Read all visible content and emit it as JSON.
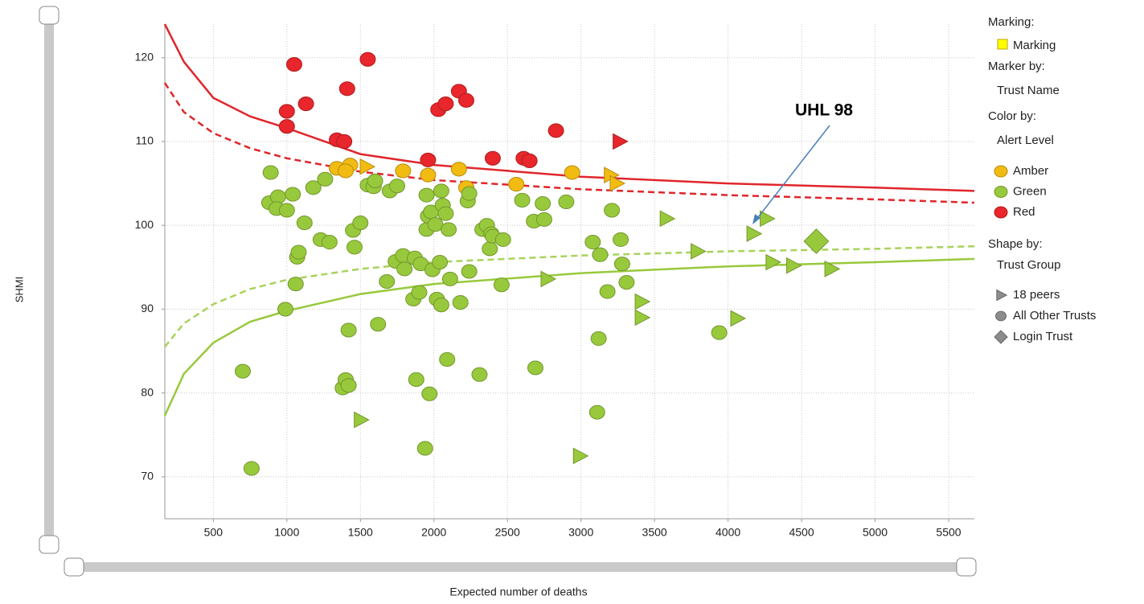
{
  "chart_data": {
    "type": "scatter",
    "x_label": "Expected number of deaths",
    "y_label": "SHMI",
    "xlim": [
      170,
      5675
    ],
    "ylim": [
      65,
      124
    ],
    "xticks": [
      500,
      1000,
      1500,
      2000,
      2500,
      3000,
      3500,
      4000,
      4500,
      5000,
      5500
    ],
    "yticks": [
      70,
      80,
      90,
      100,
      110,
      120
    ],
    "grid": true,
    "annotation": "UHL 98",
    "legend": {
      "marking_title": "Marking:",
      "marking": "Marking",
      "marking_color": "#ffff00",
      "marker_by_title": "Marker by:",
      "marker_by": "Trust Name",
      "color_by_title": "Color by:",
      "color_by": "Alert Level",
      "colors": [
        {
          "name": "Amber",
          "color": "#f2bb12"
        },
        {
          "name": "Green",
          "color": "#98c93c"
        },
        {
          "name": "Red",
          "color": "#e8262b"
        }
      ],
      "shape_by_title": "Shape by:",
      "shape_by": "Trust Group",
      "shapes": [
        {
          "name": "18 peers",
          "shape": "triangle"
        },
        {
          "name": "All Other Trusts",
          "shape": "circle"
        },
        {
          "name": "Login Trust",
          "shape": "diamond"
        }
      ],
      "shape_color": "#8c8c8c"
    },
    "lines": [
      {
        "color": "#e0262b",
        "dashed": false,
        "x": [
          170,
          300,
          500,
          750,
          1000,
          1500,
          2000,
          3000,
          4000,
          5000,
          5675
        ],
        "values": [
          124,
          119.5,
          115.2,
          113,
          111.6,
          108.5,
          107.2,
          105.8,
          105,
          104.5,
          104.1
        ]
      },
      {
        "color": "#e0262b",
        "dashed": true,
        "x": [
          170,
          300,
          500,
          750,
          1000,
          1500,
          2000,
          3000,
          4000,
          5000,
          5675
        ],
        "values": [
          117,
          113.5,
          111,
          109.2,
          108,
          106.4,
          105.4,
          104.3,
          103.6,
          103.1,
          102.7
        ]
      },
      {
        "color": "#a8d35a",
        "dashed": true,
        "x": [
          170,
          300,
          500,
          750,
          1000,
          1500,
          2000,
          3000,
          4000,
          5000,
          5675
        ],
        "values": [
          85.5,
          88.3,
          90.6,
          92.4,
          93.5,
          94.8,
          95.6,
          96.4,
          96.9,
          97.2,
          97.5
        ]
      },
      {
        "color": "#98c93c",
        "dashed": false,
        "x": [
          170,
          300,
          500,
          750,
          1000,
          1500,
          2000,
          3000,
          4000,
          5000,
          5675
        ],
        "values": [
          77.3,
          82.3,
          86,
          88.5,
          89.8,
          91.8,
          93,
          94.3,
          95.1,
          95.6,
          96
        ]
      }
    ],
    "series": [
      {
        "level": 2,
        "shape": 1,
        "x": [
          1050,
          1000,
          1000,
          1130,
          1410,
          1550,
          1340,
          1390,
          1960,
          2030,
          2080,
          2170,
          2220,
          2400,
          2610,
          2650,
          2830
        ],
        "values": [
          119.2,
          113.6,
          111.8,
          114.5,
          116.3,
          119.8,
          110.2,
          110,
          107.8,
          113.8,
          114.5,
          116,
          114.9,
          108,
          108,
          107.7,
          111.3
        ]
      },
      {
        "level": 2,
        "shape": 0,
        "x": [
          3260
        ],
        "values": [
          110
        ]
      },
      {
        "level": 0,
        "shape": 1,
        "x": [
          1340,
          1430,
          1400,
          1790,
          1960,
          2170,
          2220,
          2560,
          2940
        ],
        "values": [
          106.8,
          107.2,
          106.5,
          106.5,
          106,
          106.7,
          104.5,
          104.9,
          106.3
        ]
      },
      {
        "level": 0,
        "shape": 0,
        "x": [
          1540,
          3200,
          3240
        ],
        "values": [
          107,
          106,
          105
        ]
      },
      {
        "level": 1,
        "shape": 1,
        "x": [
          890,
          880,
          940,
          930,
          1000,
          1040,
          1060,
          1070,
          1080,
          1120,
          1180,
          1230,
          1260,
          1290,
          990,
          700,
          760,
          1380,
          1400,
          1420,
          1420,
          1450,
          1460,
          1500,
          1550,
          1590,
          1620,
          1600,
          1680,
          1700,
          1740,
          1750,
          1790,
          1800,
          1860,
          1870,
          1880,
          1900,
          1910,
          1940,
          1950,
          1950,
          1960,
          1970,
          1980,
          1990,
          2010,
          2020,
          2040,
          2050,
          2050,
          2060,
          2080,
          2090,
          2100,
          2110,
          2180,
          2230,
          2240,
          2240,
          2310,
          2330,
          2360,
          2380,
          2390,
          2400,
          2460,
          2470,
          2600,
          2680,
          2690,
          2740,
          2750,
          2900,
          3080,
          3110,
          3130,
          3120,
          3180,
          3210,
          3270,
          3280,
          3310,
          3940
        ],
        "values": [
          106.3,
          102.7,
          103.4,
          102,
          101.8,
          103.7,
          93,
          96.2,
          96.8,
          100.3,
          104.5,
          98.3,
          105.5,
          98,
          90,
          82.6,
          71,
          80.6,
          81.6,
          80.9,
          87.5,
          99.4,
          97.4,
          100.3,
          104.8,
          104.6,
          88.2,
          105.3,
          93.3,
          104.1,
          95.7,
          104.7,
          96.4,
          94.8,
          91.2,
          96.1,
          81.6,
          92,
          95.4,
          73.4,
          99.5,
          103.6,
          101.1,
          79.9,
          101.6,
          94.7,
          100.1,
          91.2,
          95.6,
          104.1,
          90.5,
          102.4,
          101.4,
          84,
          99.5,
          93.6,
          90.8,
          102.9,
          103.8,
          94.5,
          82.2,
          99.5,
          100,
          97.2,
          99,
          98.7,
          92.9,
          98.3,
          103,
          100.5,
          83,
          102.6,
          100.7,
          102.8,
          98,
          77.7,
          96.5,
          86.5,
          92.1,
          101.8,
          98.3,
          95.4,
          93.2,
          87.2
        ]
      },
      {
        "level": 1,
        "shape": 0,
        "x": [
          1500,
          2770,
          2990,
          3410,
          3410,
          3580,
          3790,
          4060,
          4170,
          4260,
          4300,
          4440,
          4700
        ],
        "values": [
          76.8,
          93.6,
          72.5,
          90.9,
          89,
          100.8,
          96.9,
          88.9,
          99,
          100.8,
          95.6,
          95.2,
          94.8
        ]
      },
      {
        "level": 1,
        "shape": 2,
        "x": [
          4600
        ],
        "values": [
          98.1
        ]
      }
    ]
  }
}
